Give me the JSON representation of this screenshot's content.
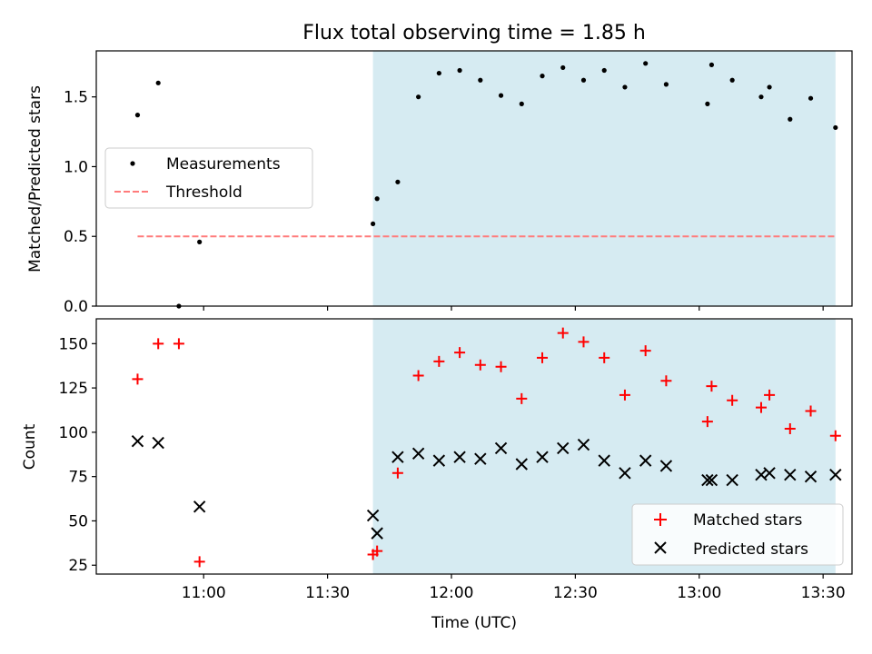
{
  "chart_data": [
    {
      "type": "scatter",
      "title": "Flux total observing time = 1.85 h",
      "xlabel": "",
      "ylabel": "Matched/Predicted stars",
      "ylim": [
        0,
        1.83
      ],
      "yticks": [
        0.0,
        0.5,
        1.0,
        1.5
      ],
      "ytick_labels": [
        "0.0",
        "0.5",
        "1.0",
        "1.5"
      ],
      "legend_position": "center-left",
      "series": [
        {
          "name": "Measurements",
          "color": "#000000",
          "marker": "dot",
          "x": [
            "10:44",
            "10:49",
            "10:54",
            "10:59",
            "11:41",
            "11:42",
            "11:47",
            "11:52",
            "11:57",
            "12:02",
            "12:07",
            "12:12",
            "12:17",
            "12:22",
            "12:27",
            "12:32",
            "12:37",
            "12:42",
            "12:47",
            "12:52",
            "13:02",
            "13:03",
            "13:08",
            "13:15",
            "13:17",
            "13:22",
            "13:27",
            "13:33"
          ],
          "y": [
            1.37,
            1.6,
            0.0,
            0.46,
            0.59,
            0.77,
            0.89,
            1.5,
            1.67,
            1.69,
            1.62,
            1.51,
            1.45,
            1.65,
            1.71,
            1.62,
            1.69,
            1.57,
            1.74,
            1.59,
            1.45,
            1.73,
            1.62,
            1.5,
            1.57,
            1.34,
            1.49,
            1.28
          ]
        },
        {
          "name": "Threshold",
          "color": "#ff7b7b",
          "style": "dashed",
          "x": [
            "10:44",
            "13:33"
          ],
          "y": [
            0.5,
            0.5
          ]
        }
      ]
    },
    {
      "type": "scatter",
      "xlabel": "Time (UTC)",
      "ylabel": "Count",
      "ylim": [
        20,
        164
      ],
      "yticks": [
        25,
        50,
        75,
        100,
        125,
        150
      ],
      "ytick_labels": [
        "25",
        "50",
        "75",
        "100",
        "125",
        "150"
      ],
      "legend_position": "bottom-right",
      "series": [
        {
          "name": "Matched stars",
          "color": "#ff0000",
          "marker": "plus",
          "x": [
            "10:44",
            "10:49",
            "10:54",
            "10:59",
            "11:41",
            "11:42",
            "11:47",
            "11:52",
            "11:57",
            "12:02",
            "12:07",
            "12:12",
            "12:17",
            "12:22",
            "12:27",
            "12:32",
            "12:37",
            "12:42",
            "12:47",
            "12:52",
            "13:02",
            "13:03",
            "13:08",
            "13:15",
            "13:17",
            "13:22",
            "13:27",
            "13:33"
          ],
          "y": [
            130,
            150,
            150,
            27,
            31,
            33,
            77,
            132,
            140,
            145,
            138,
            137,
            119,
            142,
            156,
            151,
            142,
            121,
            146,
            129,
            106,
            126,
            118,
            114,
            121,
            102,
            112,
            98
          ]
        },
        {
          "name": "Predicted stars",
          "color": "#000000",
          "marker": "x",
          "x": [
            "10:44",
            "10:49",
            "10:59",
            "11:41",
            "11:42",
            "11:47",
            "11:52",
            "11:57",
            "12:02",
            "12:07",
            "12:12",
            "12:17",
            "12:22",
            "12:27",
            "12:32",
            "12:37",
            "12:42",
            "12:47",
            "12:52",
            "13:02",
            "13:03",
            "13:08",
            "13:15",
            "13:17",
            "13:22",
            "13:27",
            "13:33"
          ],
          "y": [
            95,
            94,
            58,
            53,
            43,
            86,
            88,
            84,
            86,
            85,
            91,
            82,
            86,
            91,
            93,
            84,
            77,
            84,
            81,
            73,
            73,
            73,
            76,
            77,
            76,
            75,
            76
          ]
        }
      ]
    }
  ],
  "shared_x": {
    "xlim": [
      "10:34",
      "13:37"
    ],
    "ticks": [
      "11:00",
      "11:30",
      "12:00",
      "12:30",
      "13:00",
      "13:30"
    ],
    "tick_labels": [
      "11:00",
      "11:30",
      "12:00",
      "12:30",
      "13:00",
      "13:30"
    ]
  },
  "observing_window": {
    "start": "11:41",
    "end": "13:33",
    "color": "#add8e6"
  }
}
